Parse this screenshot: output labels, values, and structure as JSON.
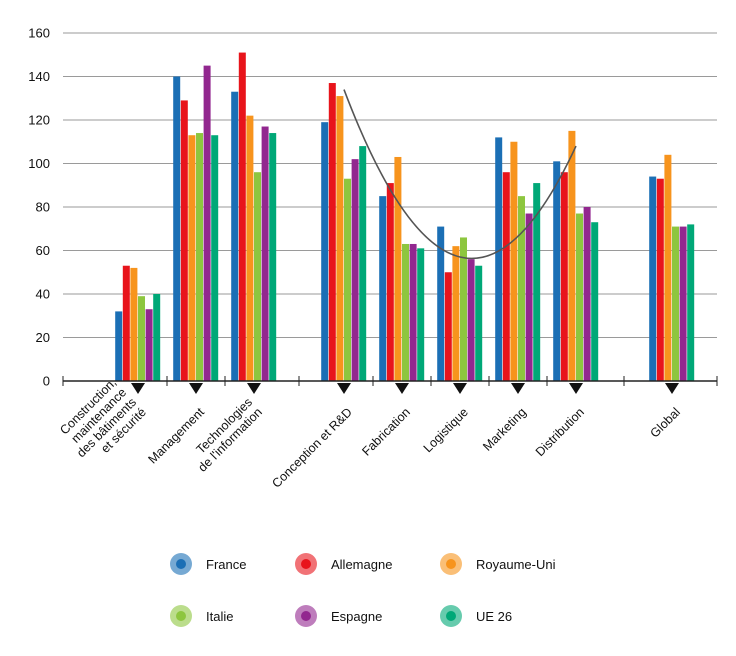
{
  "chart_data": {
    "type": "bar",
    "ylim": [
      0,
      160
    ],
    "yticks": [
      0,
      20,
      40,
      60,
      80,
      100,
      120,
      140,
      160
    ],
    "grid": true,
    "legend_position": "bottom",
    "categories": [
      "Construction, maintenance des bâtiments et sécurité",
      "Management",
      "Technologies de l'information",
      "Conception et R&D",
      "Fabrication",
      "Logistique",
      "Marketing",
      "Distribution",
      "Global"
    ],
    "category_label_lines": [
      [
        "Construction,",
        "maintenance",
        "des bâtiments",
        "et sécurité"
      ],
      [
        "Management"
      ],
      [
        "Technologies",
        "de l'information"
      ],
      [
        "Conception et R&D"
      ],
      [
        "Fabrication"
      ],
      [
        "Logistique"
      ],
      [
        "Marketing"
      ],
      [
        "Distribution"
      ],
      [
        "Global"
      ]
    ],
    "series": [
      {
        "name": "France",
        "color": "#1b6fb5",
        "values": [
          32,
          140,
          133,
          119,
          85,
          71,
          112,
          101,
          94
        ]
      },
      {
        "name": "Allemagne",
        "color": "#e8141b",
        "values": [
          53,
          129,
          151,
          137,
          91,
          50,
          96,
          96,
          93
        ]
      },
      {
        "name": "Royaume-Uni",
        "color": "#f7941d",
        "values": [
          52,
          113,
          122,
          131,
          103,
          62,
          110,
          115,
          104
        ]
      },
      {
        "name": "Italie",
        "color": "#8dc63f",
        "values": [
          39,
          114,
          96,
          93,
          63,
          66,
          85,
          77,
          71
        ]
      },
      {
        "name": "Espagne",
        "color": "#92278f",
        "values": [
          33,
          145,
          117,
          102,
          63,
          56,
          77,
          80,
          71
        ]
      },
      {
        "name": "UE 26",
        "color": "#00a877",
        "values": [
          40,
          113,
          114,
          108,
          61,
          53,
          91,
          73,
          72
        ]
      }
    ],
    "trend_line": {
      "color": "#555555",
      "points": [
        [
          3,
          134
        ],
        [
          5,
          57
        ],
        [
          7,
          108
        ]
      ]
    }
  }
}
